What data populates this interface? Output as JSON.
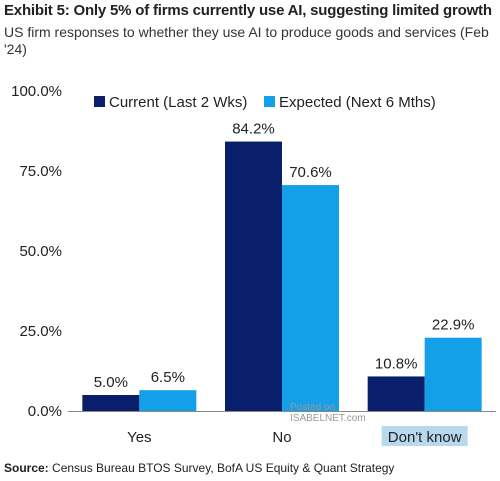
{
  "header": {
    "title": "Exhibit 5: Only 5% of firms currently use AI, suggesting limited growth",
    "subtitle": "US firm responses to whether they use AI to produce goods and services (Feb '24)"
  },
  "footer": {
    "source_prefix": "Source:",
    "source_text": "Census Bureau BTOS Survey, BofA US Equity & Quant Strategy"
  },
  "watermark": {
    "line1": "Posted on",
    "line2": "ISABELNET.com"
  },
  "colors": {
    "current": "#0a1f6b",
    "expected": "#14a0e8",
    "axis": "#888888",
    "highlight": "#b7d9ef"
  },
  "chart_data": {
    "type": "bar",
    "categories": [
      "Yes",
      "No",
      "Don't know"
    ],
    "series": [
      {
        "name": "Current (Last 2 Wks)",
        "values": [
          5.0,
          84.2,
          10.8
        ],
        "labels": [
          "5.0%",
          "84.2%",
          "10.8%"
        ]
      },
      {
        "name": "Expected (Next 6 Mths)",
        "values": [
          6.5,
          70.6,
          22.9
        ],
        "labels": [
          "6.5%",
          "70.6%",
          "22.9%"
        ]
      }
    ],
    "ylim": [
      0,
      100
    ],
    "yticks": [
      {
        "value": 0,
        "label": "0.0%"
      },
      {
        "value": 25,
        "label": "25.0%"
      },
      {
        "value": 50,
        "label": "50.0%"
      },
      {
        "value": 75,
        "label": "75.0%"
      },
      {
        "value": 100,
        "label": "100.0%"
      }
    ],
    "grid": false,
    "legend": "top-right"
  }
}
